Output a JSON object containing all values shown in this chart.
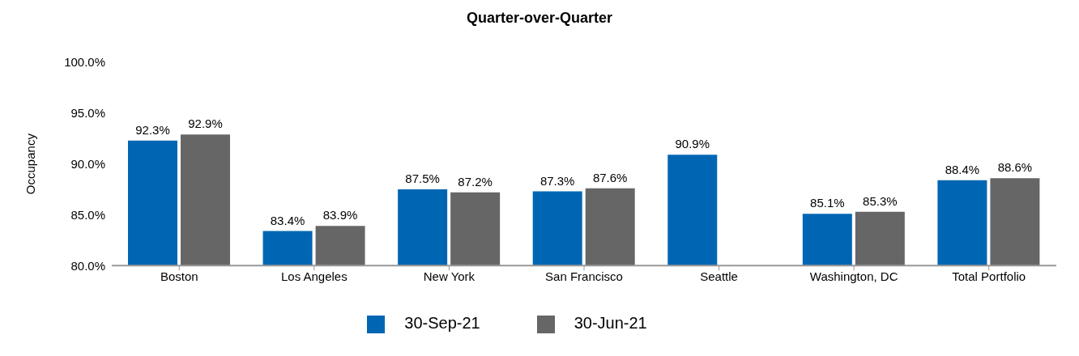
{
  "chart_data": {
    "type": "bar",
    "title": "Quarter-over-Quarter",
    "ylabel": "Occupancy",
    "categories": [
      "Boston",
      "Los Angeles",
      "New York",
      "San Francisco",
      "Seattle",
      "Washington, DC",
      "Total Portfolio"
    ],
    "series": [
      {
        "name": "30-Sep-21",
        "color": "#0066b3",
        "values": [
          92.3,
          83.4,
          87.5,
          87.3,
          90.9,
          85.1,
          88.4
        ],
        "value_labels": [
          "92.3%",
          "83.4%",
          "87.5%",
          "87.3%",
          "90.9%",
          "85.1%",
          "88.4%"
        ]
      },
      {
        "name": "30-Jun-21",
        "color": "#666666",
        "values": [
          92.9,
          83.9,
          87.2,
          87.6,
          null,
          85.3,
          88.6
        ],
        "value_labels": [
          "92.9%",
          "83.9%",
          "87.2%",
          "87.6%",
          null,
          "85.3%",
          "88.6%"
        ]
      }
    ],
    "ylim": [
      80,
      100
    ],
    "yticks": [
      {
        "value": 80,
        "label": "80.0%"
      },
      {
        "value": 85,
        "label": "85.0%"
      },
      {
        "value": 90,
        "label": "90.0%"
      },
      {
        "value": 95,
        "label": "95.0%"
      },
      {
        "value": 100,
        "label": "100.0%"
      }
    ],
    "grid": false,
    "legend": "bottom"
  }
}
